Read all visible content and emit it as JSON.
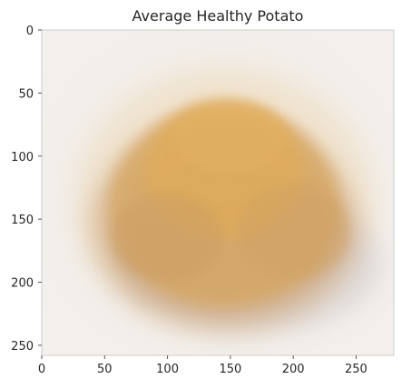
{
  "chart_data": {
    "type": "image",
    "title": "Average Healthy Potato",
    "xlabel": "",
    "ylabel": "",
    "xlim": [
      0,
      280
    ],
    "ylim": [
      258,
      0
    ],
    "x_ticks": [
      0,
      50,
      100,
      150,
      200,
      250
    ],
    "y_ticks": [
      0,
      50,
      100,
      150,
      200,
      250
    ],
    "x_tick_labels": [
      "0",
      "50",
      "100",
      "150",
      "200",
      "250"
    ],
    "y_tick_labels": [
      "0",
      "50",
      "100",
      "150",
      "200",
      "250"
    ],
    "grid": false,
    "colors": {
      "background": "#efebe6",
      "potato_center": "#e1ac57",
      "potato_mid": "#d6a55e",
      "potato_edge": "#c79b6d",
      "shadow": "#9a8e9c",
      "axis_spine": "#cccccc"
    }
  }
}
